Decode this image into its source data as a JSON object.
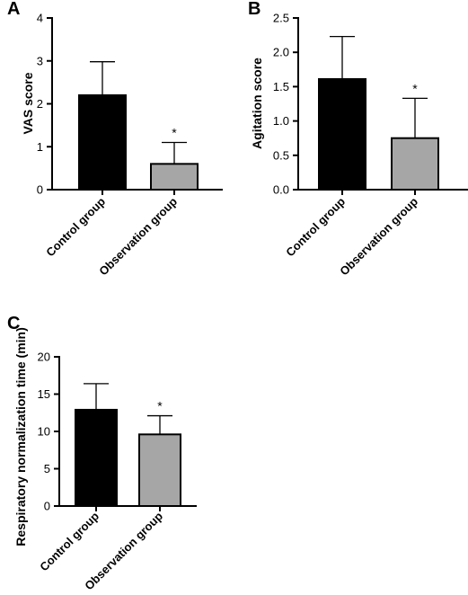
{
  "colors": {
    "control": "#000000",
    "observation": "#a6a6a6",
    "axis": "#000000",
    "background": "#ffffff"
  },
  "chart_data": [
    {
      "panel": "A",
      "type": "bar",
      "title": "",
      "xlabel": "",
      "ylabel": "VAS score",
      "categories": [
        "Control group",
        "Observation group"
      ],
      "values": [
        2.2,
        0.6
      ],
      "errors": [
        0.78,
        0.5
      ],
      "significance": [
        "",
        "*"
      ],
      "ylim": [
        0,
        4
      ],
      "yticks": [
        0,
        1,
        2,
        3,
        4
      ],
      "ytick_labels": [
        "0",
        "1",
        "2",
        "3",
        "4"
      ],
      "grid": false
    },
    {
      "panel": "B",
      "type": "bar",
      "title": "",
      "xlabel": "",
      "ylabel": "Agitation score",
      "categories": [
        "Control group",
        "Observation group"
      ],
      "values": [
        1.61,
        0.75
      ],
      "errors": [
        0.62,
        0.58
      ],
      "significance": [
        "",
        "*"
      ],
      "ylim": [
        0,
        2.5
      ],
      "yticks": [
        0,
        0.5,
        1,
        1.5,
        2,
        2.5
      ],
      "ytick_labels": [
        "0.0",
        "0.5",
        "1.0",
        "1.5",
        "2.0",
        "2.5"
      ],
      "grid": false
    },
    {
      "panel": "C",
      "type": "bar",
      "title": "",
      "xlabel": "",
      "ylabel": "Respiratory normalization time (min)",
      "categories": [
        "Control group",
        "Observation group"
      ],
      "values": [
        12.9,
        9.6
      ],
      "errors": [
        3.5,
        2.5
      ],
      "significance": [
        "",
        "*"
      ],
      "ylim": [
        0,
        20
      ],
      "yticks": [
        0,
        5,
        10,
        15,
        20
      ],
      "ytick_labels": [
        "0",
        "5",
        "10",
        "15",
        "20"
      ],
      "grid": false
    }
  ]
}
